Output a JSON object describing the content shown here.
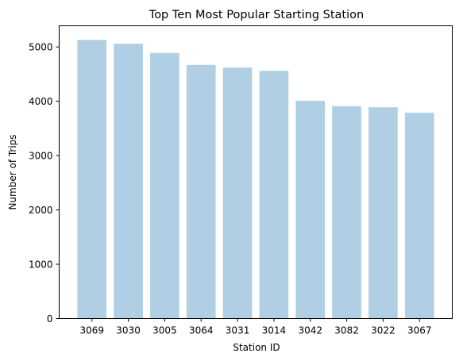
{
  "chart_data": {
    "type": "bar",
    "title": "Top Ten Most Popular Starting Station",
    "xlabel": "Station ID",
    "ylabel": "Number of Trips",
    "categories": [
      "3069",
      "3030",
      "3005",
      "3064",
      "3031",
      "3014",
      "3042",
      "3082",
      "3022",
      "3067"
    ],
    "values": [
      5130,
      5060,
      4890,
      4670,
      4620,
      4560,
      4010,
      3910,
      3890,
      3790
    ],
    "ylim": [
      0,
      5390
    ],
    "yticks": [
      0,
      1000,
      2000,
      3000,
      4000,
      5000
    ],
    "bar_color": "#b0cfe4",
    "grid": false,
    "legend": "none"
  }
}
